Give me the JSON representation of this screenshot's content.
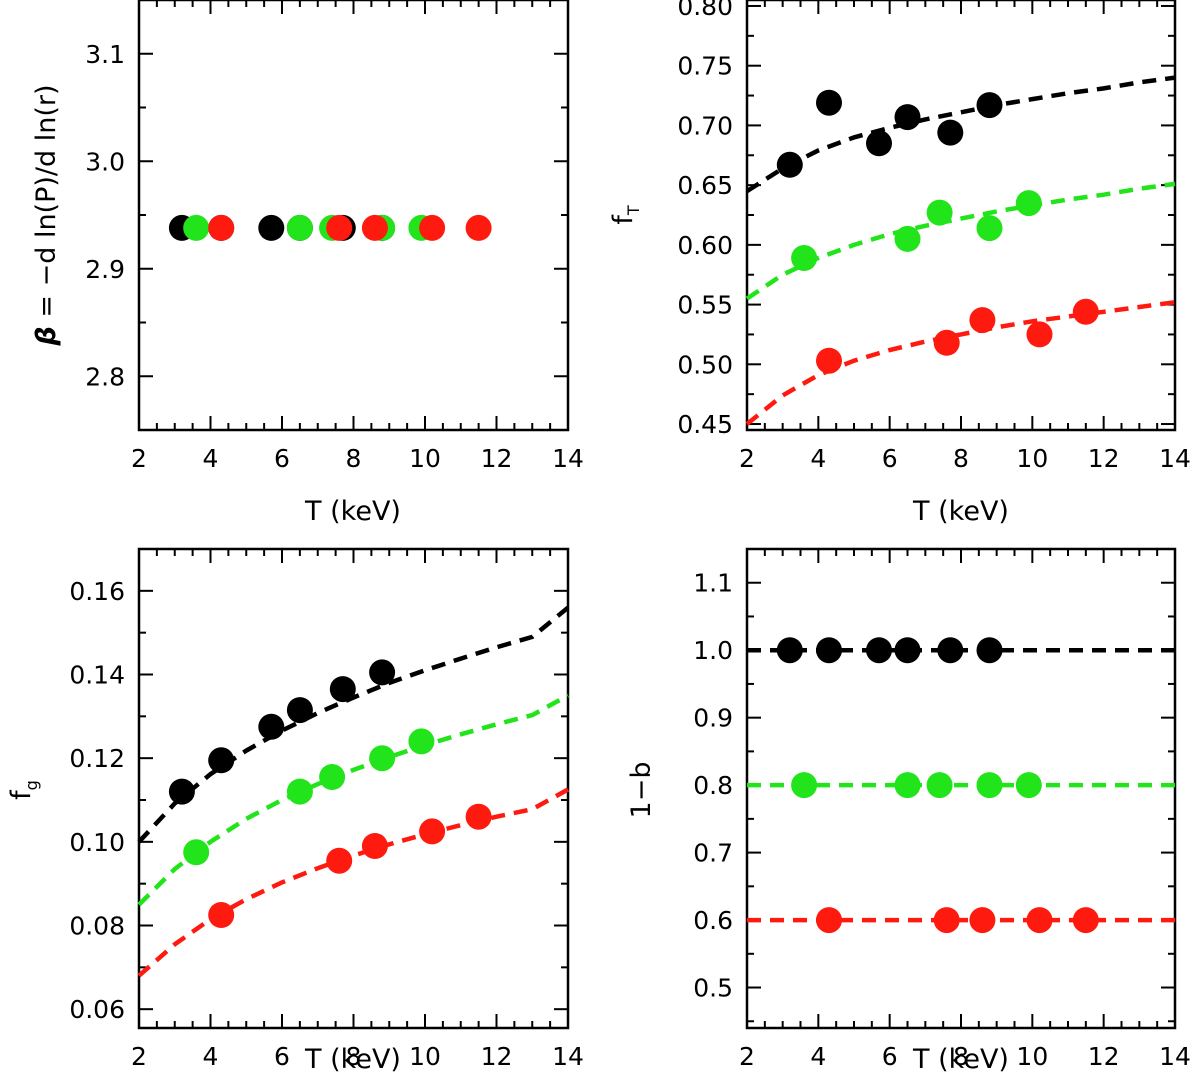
{
  "colors": {
    "black": "#000000",
    "green": "#22e41b",
    "red": "#ff1a10"
  },
  "chart_data": [
    {
      "id": "beta",
      "type": "scatter",
      "xlabel": "T (keV)",
      "ylabel_main": "β",
      "ylabel_rest": " = −d ln(P)/d ln(r)",
      "xlim": [
        2,
        14
      ],
      "ylim": [
        2.75,
        3.15
      ],
      "xticks": [
        2,
        4,
        6,
        8,
        10,
        12,
        14
      ],
      "xtick_labels": [
        "2",
        "4",
        "6",
        "8",
        "10",
        "12",
        "14"
      ],
      "yticks": [
        2.8,
        2.9,
        3.0,
        3.1
      ],
      "ytick_labels": [
        "2.8",
        "2.9",
        "3.0",
        "3.1"
      ],
      "series": [
        {
          "name": "black",
          "color": "#000000",
          "x": [
            3.2,
            4.3,
            5.7,
            6.5,
            7.7,
            8.8
          ],
          "y": [
            2.938,
            2.938,
            2.938,
            2.938,
            2.938,
            2.938
          ]
        },
        {
          "name": "green",
          "color": "#22e41b",
          "x": [
            3.6,
            6.5,
            7.4,
            8.8,
            9.9
          ],
          "y": [
            2.938,
            2.938,
            2.938,
            2.938,
            2.938
          ]
        },
        {
          "name": "red",
          "color": "#ff1a10",
          "x": [
            4.3,
            7.6,
            8.6,
            10.2,
            11.5
          ],
          "y": [
            2.938,
            2.938,
            2.938,
            2.938,
            2.938
          ]
        }
      ],
      "fits": []
    },
    {
      "id": "fT",
      "type": "scatter",
      "xlabel": "T (keV)",
      "ylabel_main": "f",
      "ylabel_sub": "T",
      "xlim": [
        2,
        14
      ],
      "ylim": [
        0.445,
        0.805
      ],
      "xticks": [
        2,
        4,
        6,
        8,
        10,
        12,
        14
      ],
      "xtick_labels": [
        "2",
        "4",
        "6",
        "8",
        "10",
        "12",
        "14"
      ],
      "yticks": [
        0.45,
        0.5,
        0.55,
        0.6,
        0.65,
        0.7,
        0.75,
        0.8
      ],
      "ytick_labels": [
        "0.45",
        "0.50",
        "0.55",
        "0.60",
        "0.65",
        "0.70",
        "0.75",
        "0.80"
      ],
      "series": [
        {
          "name": "black",
          "color": "#000000",
          "x": [
            3.2,
            4.3,
            5.7,
            6.5,
            7.7,
            8.8
          ],
          "y": [
            0.667,
            0.719,
            0.685,
            0.707,
            0.694,
            0.717
          ]
        },
        {
          "name": "green",
          "color": "#22e41b",
          "x": [
            3.6,
            6.5,
            7.4,
            8.8,
            9.9
          ],
          "y": [
            0.589,
            0.605,
            0.627,
            0.614,
            0.635
          ]
        },
        {
          "name": "red",
          "color": "#ff1a10",
          "x": [
            4.3,
            7.6,
            8.6,
            10.2,
            11.5
          ],
          "y": [
            0.503,
            0.518,
            0.537,
            0.525,
            0.544
          ]
        }
      ],
      "fits": [
        {
          "color": "#000000",
          "x": [
            2,
            3,
            4,
            5,
            6,
            7,
            8,
            9,
            10,
            11,
            12,
            13,
            14
          ],
          "y": [
            0.645,
            0.664,
            0.679,
            0.69,
            0.698,
            0.705,
            0.711,
            0.717,
            0.722,
            0.727,
            0.731,
            0.736,
            0.74
          ]
        },
        {
          "color": "#22e41b",
          "x": [
            2,
            3,
            4,
            5,
            6,
            7,
            8,
            9,
            10,
            11,
            12,
            13,
            14
          ],
          "y": [
            0.555,
            0.575,
            0.589,
            0.6,
            0.609,
            0.616,
            0.622,
            0.628,
            0.633,
            0.638,
            0.642,
            0.647,
            0.651
          ]
        },
        {
          "color": "#ff1a10",
          "x": [
            2,
            3,
            4,
            5,
            6,
            7,
            8,
            9,
            10,
            11,
            12,
            13,
            14
          ],
          "y": [
            0.45,
            0.474,
            0.491,
            0.503,
            0.512,
            0.519,
            0.525,
            0.531,
            0.536,
            0.54,
            0.544,
            0.548,
            0.552
          ]
        }
      ]
    },
    {
      "id": "fg",
      "type": "scatter",
      "xlabel": "T (keV)",
      "ylabel_main": "f",
      "ylabel_sub": "g",
      "xlim": [
        2,
        14
      ],
      "ylim": [
        0.0555,
        0.17
      ],
      "xticks": [
        2,
        4,
        6,
        8,
        10,
        12,
        14
      ],
      "xtick_labels": [
        "2",
        "4",
        "6",
        "8",
        "10",
        "12",
        "14"
      ],
      "yticks": [
        0.06,
        0.08,
        0.1,
        0.12,
        0.14,
        0.16
      ],
      "ytick_labels": [
        "0.06",
        "0.08",
        "0.10",
        "0.12",
        "0.14",
        "0.16"
      ],
      "series": [
        {
          "name": "black",
          "color": "#000000",
          "x": [
            3.2,
            4.3,
            5.7,
            6.5,
            7.7,
            8.8
          ],
          "y": [
            0.112,
            0.1195,
            0.1275,
            0.1315,
            0.1365,
            0.1405
          ]
        },
        {
          "name": "green",
          "color": "#22e41b",
          "x": [
            3.6,
            6.5,
            7.4,
            8.8,
            9.9
          ],
          "y": [
            0.0975,
            0.112,
            0.1155,
            0.12,
            0.124
          ]
        },
        {
          "name": "red",
          "color": "#ff1a10",
          "x": [
            4.3,
            7.6,
            8.6,
            10.2,
            11.5
          ],
          "y": [
            0.0825,
            0.0955,
            0.099,
            0.1025,
            0.106
          ]
        }
      ],
      "fits": [
        {
          "color": "#000000",
          "x": [
            2,
            3,
            4,
            5,
            6,
            7,
            8,
            9,
            10,
            11,
            12,
            13,
            14
          ],
          "y": [
            0.1,
            0.1092,
            0.1162,
            0.1218,
            0.1266,
            0.1308,
            0.1345,
            0.138,
            0.141,
            0.1438,
            0.1465,
            0.149,
            0.156
          ]
        },
        {
          "color": "#22e41b",
          "x": [
            2,
            3,
            4,
            5,
            6,
            7,
            8,
            9,
            10,
            11,
            12,
            13,
            14
          ],
          "y": [
            0.085,
            0.0935,
            0.1,
            0.1055,
            0.11,
            0.1138,
            0.1172,
            0.1203,
            0.1231,
            0.1257,
            0.1281,
            0.1303,
            0.135
          ]
        },
        {
          "color": "#ff1a10",
          "x": [
            2,
            3,
            4,
            5,
            6,
            7,
            8,
            9,
            10,
            11,
            12,
            13,
            14
          ],
          "y": [
            0.068,
            0.0755,
            0.0815,
            0.0863,
            0.0903,
            0.0937,
            0.0967,
            0.0994,
            0.1018,
            0.104,
            0.106,
            0.1078,
            0.1125
          ]
        }
      ]
    },
    {
      "id": "one-minus-b",
      "type": "scatter",
      "xlabel": "T (keV)",
      "ylabel_main": "1−b",
      "xlim": [
        2,
        14
      ],
      "ylim": [
        0.44,
        1.15
      ],
      "xticks": [
        2,
        4,
        6,
        8,
        10,
        12,
        14
      ],
      "xtick_labels": [
        "2",
        "4",
        "6",
        "8",
        "10",
        "12",
        "14"
      ],
      "yticks": [
        0.5,
        0.6,
        0.7,
        0.8,
        0.9,
        1.0,
        1.1
      ],
      "ytick_labels": [
        "0.5",
        "0.6",
        "0.7",
        "0.8",
        "0.9",
        "1.0",
        "1.1"
      ],
      "series": [
        {
          "name": "black",
          "color": "#000000",
          "x": [
            3.2,
            4.3,
            5.7,
            6.5,
            7.7,
            8.8
          ],
          "y": [
            1.0,
            1.0,
            1.0,
            1.0,
            1.0,
            1.0
          ]
        },
        {
          "name": "green",
          "color": "#22e41b",
          "x": [
            3.6,
            6.5,
            7.4,
            8.8,
            9.9
          ],
          "y": [
            0.8,
            0.8,
            0.8,
            0.8,
            0.8
          ]
        },
        {
          "name": "red",
          "color": "#ff1a10",
          "x": [
            4.3,
            7.6,
            8.6,
            10.2,
            11.5
          ],
          "y": [
            0.6,
            0.6,
            0.6,
            0.6,
            0.6
          ]
        }
      ],
      "fits": [
        {
          "color": "#000000",
          "x": [
            2,
            14
          ],
          "y": [
            1.0,
            1.0
          ]
        },
        {
          "color": "#22e41b",
          "x": [
            2,
            14
          ],
          "y": [
            0.8,
            0.8
          ]
        },
        {
          "color": "#ff1a10",
          "x": [
            2,
            14
          ],
          "y": [
            0.6,
            0.6
          ]
        }
      ]
    }
  ]
}
